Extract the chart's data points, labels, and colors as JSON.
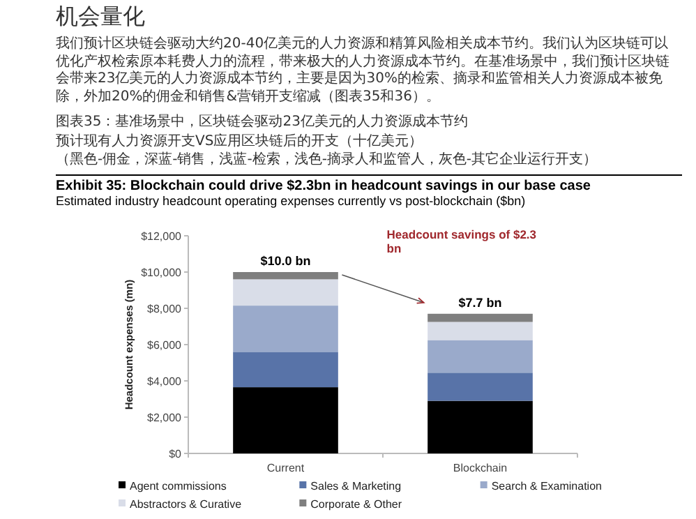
{
  "chart_data": {
    "type": "bar",
    "stacked": true,
    "title": "Exhibit 35: Blockchain could drive $2.3bn in headcount savings in our base case",
    "subtitle": "Estimated industry headcount operating expenses currently vs post-blockchain ($bn)",
    "ylabel": "Headcount expenses (mn)",
    "categories": [
      "Current",
      "Blockchain"
    ],
    "series": [
      {
        "name": "Agent commissions",
        "color": "#000000",
        "values": [
          3650,
          2900
        ]
      },
      {
        "name": "Sales & Marketing",
        "color": "#5873a8",
        "values": [
          1950,
          1550
        ]
      },
      {
        "name": "Search & Examination",
        "color": "#9aaacb",
        "values": [
          2550,
          1800
        ]
      },
      {
        "name": "Abstractors & Curative",
        "color": "#d9dde8",
        "values": [
          1450,
          1000
        ]
      },
      {
        "name": "Corporate & Other",
        "color": "#7f7f7f",
        "values": [
          400,
          450
        ]
      }
    ],
    "totals": [
      "$10.0 bn",
      "$7.7 bn"
    ],
    "ylim": [
      0,
      12000
    ],
    "yticks": [
      {
        "value": 0,
        "label": "$0"
      },
      {
        "value": 2000,
        "label": "$2,000"
      },
      {
        "value": 4000,
        "label": "$4,000"
      },
      {
        "value": 6000,
        "label": "$6,000"
      },
      {
        "value": 8000,
        "label": "$8,000"
      },
      {
        "value": 10000,
        "label": "$10,000"
      },
      {
        "value": 12000,
        "label": "$12,000"
      }
    ],
    "legend": "bottom",
    "annotations": [
      "机会量化",
      "我们预计区块链会驱动大约20-40亿美元的人力资源和精算风险相关成本节约。我们认为区块链可以优化产权检索原本耗费人力的流程，带来极大的人力资源成本节约。在基准场景中，我们预计区块链会带来23亿美元的人力资源成本节约，主要是因为30%的检索、摘录和监管相关人力资源成本被免除，外加20%的佣金和销售&营销开支缩减（图表35和36）。",
      "图表35：基准场景中，区块链会驱动23亿美元的人力资源成本节约",
      "预计现有人力资源开支VS应用区块链后的开支（十亿美元）",
      "（黑色-佣金，深蓝-销售，浅蓝-检索，浅色-摘录人和监管人，灰色-其它企业运行开支）",
      "Headcount savings of $2.3 bn"
    ]
  }
}
